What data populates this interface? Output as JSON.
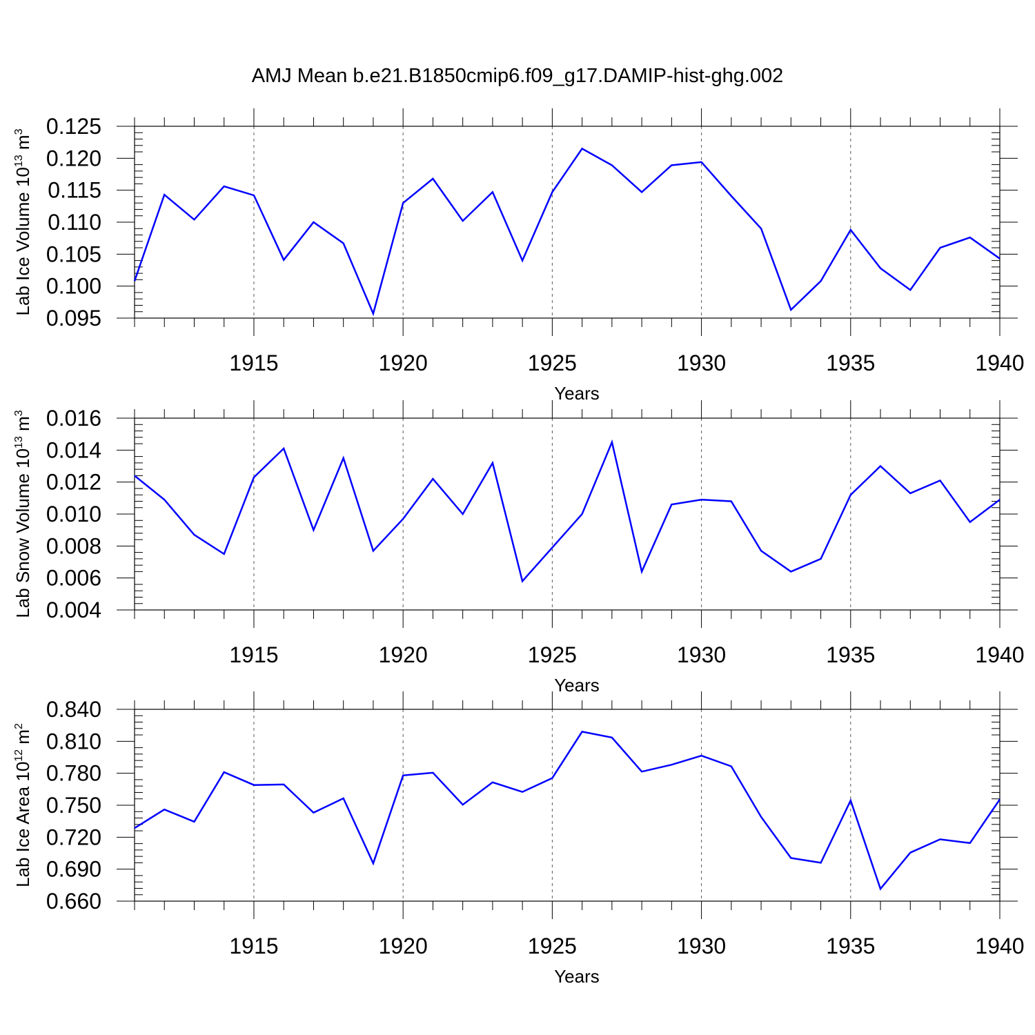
{
  "title": "AMJ Mean b.e21.B1850cmip6.f09_g17.DAMIP-hist-ghg.002",
  "colors": {
    "line": "#0000ff",
    "axes": "#000000",
    "grid": "#555555"
  },
  "chart_data": [
    {
      "type": "line",
      "ylabel": "Lab Ice Volume 10",
      "ylabel_exp": "13",
      "ylabel_unit": " m",
      "ylabel_unit_exp": "3",
      "xlabel": "Years",
      "xlim": [
        1911,
        1940
      ],
      "ylim": [
        0.095,
        0.125
      ],
      "yticks": [
        "0.095",
        "0.100",
        "0.105",
        "0.110",
        "0.115",
        "0.120",
        "0.125"
      ],
      "xticks": [
        "1915",
        "1920",
        "1925",
        "1930",
        "1935",
        "1940"
      ],
      "grid": "x-dashed",
      "x": [
        1911,
        1912,
        1913,
        1914,
        1915,
        1916,
        1917,
        1918,
        1919,
        1920,
        1921,
        1922,
        1923,
        1924,
        1925,
        1926,
        1927,
        1928,
        1929,
        1930,
        1931,
        1932,
        1933,
        1934,
        1935,
        1936,
        1937,
        1938,
        1939,
        1940
      ],
      "y": [
        0.1008,
        0.1143,
        0.1104,
        0.1156,
        0.1142,
        0.1041,
        0.11,
        0.1067,
        0.0957,
        0.113,
        0.1168,
        0.1102,
        0.1147,
        0.104,
        0.1147,
        0.1215,
        0.1189,
        0.1147,
        0.1189,
        0.1194,
        0.1141,
        0.109,
        0.0963,
        0.1008,
        0.1088,
        0.1028,
        0.0994,
        0.106,
        0.1076,
        0.1043
      ]
    },
    {
      "type": "line",
      "ylabel": "Lab Snow Volume 10",
      "ylabel_exp": "13",
      "ylabel_unit": " m",
      "ylabel_unit_exp": "3",
      "xlabel": "Years",
      "xlim": [
        1911,
        1940
      ],
      "ylim": [
        0.004,
        0.016
      ],
      "yticks": [
        "0.004",
        "0.006",
        "0.008",
        "0.010",
        "0.012",
        "0.014",
        "0.016"
      ],
      "xticks": [
        "1915",
        "1920",
        "1925",
        "1930",
        "1935",
        "1940"
      ],
      "grid": "x-dashed",
      "x": [
        1911,
        1912,
        1913,
        1914,
        1915,
        1916,
        1917,
        1918,
        1919,
        1920,
        1921,
        1922,
        1923,
        1924,
        1925,
        1926,
        1927,
        1928,
        1929,
        1930,
        1931,
        1932,
        1933,
        1934,
        1935,
        1936,
        1937,
        1938,
        1939,
        1940
      ],
      "y": [
        0.0124,
        0.0109,
        0.0087,
        0.0075,
        0.0123,
        0.0141,
        0.009,
        0.0135,
        0.0077,
        0.0097,
        0.0122,
        0.01,
        0.0132,
        0.0058,
        0.0079,
        0.01,
        0.0145,
        0.0064,
        0.0106,
        0.0109,
        0.0108,
        0.0077,
        0.0064,
        0.0072,
        0.0112,
        0.013,
        0.0113,
        0.0121,
        0.0095,
        0.0109
      ]
    },
    {
      "type": "line",
      "ylabel": "Lab Ice Area 10",
      "ylabel_exp": "12",
      "ylabel_unit": " m",
      "ylabel_unit_exp": "2",
      "xlabel": "Years",
      "xlim": [
        1911,
        1940
      ],
      "ylim": [
        0.66,
        0.84
      ],
      "yticks": [
        "0.660",
        "0.690",
        "0.720",
        "0.750",
        "0.780",
        "0.810",
        "0.840"
      ],
      "xticks": [
        "1915",
        "1920",
        "1925",
        "1930",
        "1935",
        "1940"
      ],
      "grid": "x-dashed",
      "x": [
        1911,
        1912,
        1913,
        1914,
        1915,
        1916,
        1917,
        1918,
        1919,
        1920,
        1921,
        1922,
        1923,
        1924,
        1925,
        1926,
        1927,
        1928,
        1929,
        1930,
        1931,
        1932,
        1933,
        1934,
        1935,
        1936,
        1937,
        1938,
        1939,
        1940
      ],
      "y": [
        0.7285,
        0.746,
        0.7345,
        0.781,
        0.769,
        0.7695,
        0.743,
        0.7565,
        0.6955,
        0.778,
        0.7805,
        0.7505,
        0.7715,
        0.7625,
        0.7755,
        0.819,
        0.8135,
        0.7815,
        0.788,
        0.7965,
        0.7865,
        0.739,
        0.7005,
        0.696,
        0.7545,
        0.6715,
        0.7055,
        0.718,
        0.7145,
        0.7555
      ]
    }
  ]
}
